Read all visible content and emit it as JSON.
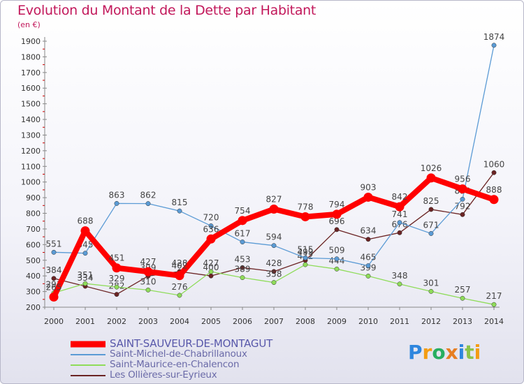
{
  "title": "Evolution du Montant de la Dette par Habitant",
  "unit": "(en €)",
  "brand": "Proxiti",
  "chart_data": {
    "type": "line",
    "x": [
      "2000",
      "2001",
      "2002",
      "2003",
      "2004",
      "2005",
      "2006",
      "2007",
      "2008",
      "2009",
      "2010",
      "2011",
      "2012",
      "2013",
      "2014"
    ],
    "ylim": [
      200,
      1900
    ],
    "yticks": [
      200,
      300,
      400,
      500,
      600,
      700,
      800,
      900,
      1000,
      1100,
      1200,
      1300,
      1400,
      1500,
      1600,
      1700,
      1800,
      1900
    ],
    "grid": false,
    "legend_position": "bottom-left",
    "series": [
      {
        "name": "Les Ollières-sur-Eyrieux",
        "color": "#6b2424",
        "values": [
          384,
          334,
          282,
          399,
          428,
          400,
          453,
          428,
          499,
          696,
          634,
          676,
          825,
          792,
          1060
        ]
      },
      {
        "name": "Saint-Maurice-en-Chalencon",
        "color": "#8fdc5a",
        "values": [
          291,
          351,
          329,
          310,
          276,
          427,
          389,
          358,
          472,
          444,
          399,
          348,
          301,
          257,
          217
        ]
      },
      {
        "name": "Saint-Michel-de-Chabrillanoux",
        "color": "#5b9bd5",
        "values": [
          551,
          545,
          863,
          862,
          815,
          720,
          617,
          594,
          515,
          509,
          465,
          741,
          671,
          890,
          1874
        ]
      },
      {
        "name": "SAINT-SAUVEUR-DE-MONTAGUT",
        "color": "#ff0000",
        "values": [
          265,
          688,
          451,
          427,
          402,
          636,
          754,
          827,
          778,
          794,
          903,
          842,
          1026,
          956,
          888
        ]
      }
    ],
    "labels": {
      "Les Ollières-sur-Eyrieux": [
        "384",
        "334",
        "282",
        "399",
        "428",
        "400",
        "453",
        "428",
        "499",
        "696",
        "634",
        "676",
        "825",
        "792",
        "1060"
      ],
      "Saint-Maurice-en-Chalencon": [
        "291",
        "351",
        "329",
        "310",
        "276",
        "427",
        "389",
        "358",
        "472",
        "444",
        "399",
        "348",
        "301",
        "257",
        "217"
      ],
      "Saint-Michel-de-Chabrillanoux": [
        "551",
        "545",
        "863",
        "862",
        "815",
        "720",
        "617",
        "594",
        "515",
        "509",
        "465",
        "741",
        "671",
        "890",
        "1874"
      ],
      "SAINT-SAUVEUR-DE-MONTAGUT": [
        "265",
        "688",
        "451",
        "427",
        "402",
        "636",
        "754",
        "827",
        "778",
        "794",
        "903",
        "842",
        "1026",
        "956",
        "888"
      ]
    },
    "legend": [
      "SAINT-SAUVEUR-DE-MONTAGUT",
      "Saint-Michel-de-Chabrillanoux",
      "Saint-Maurice-en-Chalencon",
      "Les Ollières-sur-Eyrieux"
    ]
  }
}
